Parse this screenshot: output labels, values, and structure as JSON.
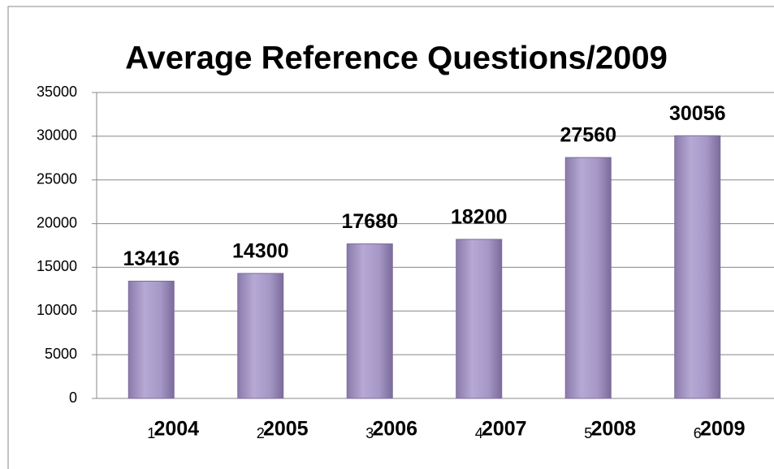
{
  "chart_data": {
    "type": "bar",
    "title": "Average Reference Questions/2009",
    "categories": [
      "1",
      "2",
      "3",
      "4",
      "5",
      "6"
    ],
    "annotations": [
      "2004",
      "2005",
      "2006",
      "2007",
      "2008",
      "2009"
    ],
    "values": [
      13416,
      14300,
      17680,
      18200,
      27560,
      30056
    ],
    "color": "#a99bc8",
    "ylim": [
      0,
      35000
    ],
    "yticks": [
      0,
      5000,
      10000,
      15000,
      20000,
      25000,
      30000,
      35000
    ],
    "grid": true
  }
}
